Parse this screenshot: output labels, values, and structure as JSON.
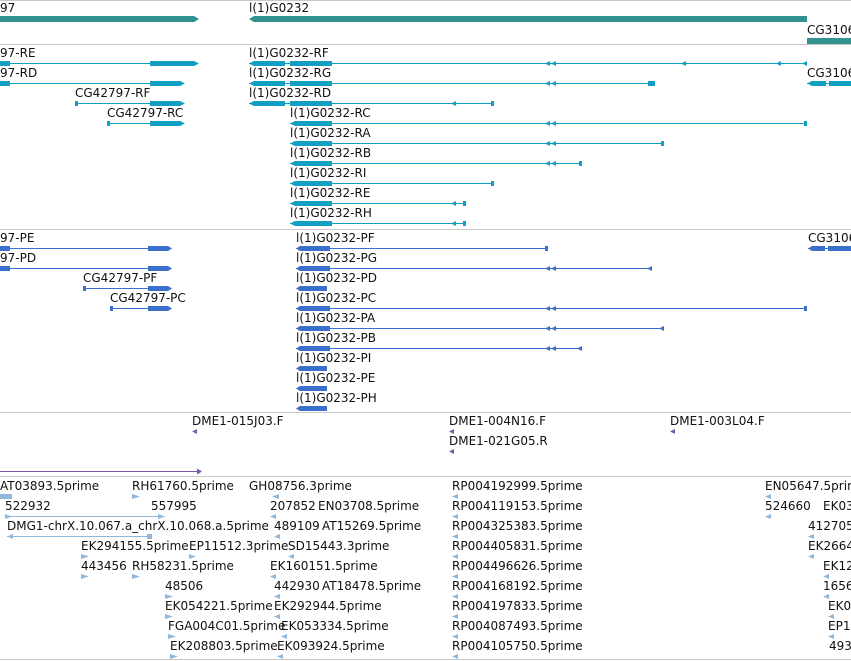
{
  "colors": {
    "gene": "#30938f",
    "rna": "#11a0c1",
    "protein": "#3a6fcc",
    "clone": "#7a5aa8",
    "est": "#8fb8dc",
    "divider": "#c8c8c8"
  },
  "genes": {
    "labels": [
      {
        "text": "97",
        "icon": ""
      },
      {
        "text": "l(1)G0232",
        "icon": ""
      },
      {
        "text": "CG3106",
        "icon": ""
      }
    ]
  },
  "transcripts": {
    "labels": [
      {
        "text": "97-RE"
      },
      {
        "text": "97-RD"
      },
      {
        "text": "CG42797-RF"
      },
      {
        "text": "CG42797-RC"
      },
      {
        "text": "l(1)G0232-RF"
      },
      {
        "text": "l(1)G0232-RG"
      },
      {
        "text": "l(1)G0232-RD"
      },
      {
        "text": "l(1)G0232-RC"
      },
      {
        "text": "l(1)G0232-RA"
      },
      {
        "text": "l(1)G0232-RB"
      },
      {
        "text": "l(1)G0232-RI"
      },
      {
        "text": "l(1)G0232-RE"
      },
      {
        "text": "l(1)G0232-RH"
      },
      {
        "text": "CG3106"
      }
    ]
  },
  "proteins": {
    "labels": [
      {
        "text": "97-PE"
      },
      {
        "text": "97-PD"
      },
      {
        "text": "CG42797-PF"
      },
      {
        "text": "CG42797-PC"
      },
      {
        "text": "l(1)G0232-PF"
      },
      {
        "text": "l(1)G0232-PG"
      },
      {
        "text": "l(1)G0232-PD"
      },
      {
        "text": "l(1)G0232-PC"
      },
      {
        "text": "l(1)G0232-PA"
      },
      {
        "text": "l(1)G0232-PB"
      },
      {
        "text": "l(1)G0232-PI"
      },
      {
        "text": "l(1)G0232-PE"
      },
      {
        "text": "l(1)G0232-PH"
      },
      {
        "text": "CG3106"
      }
    ]
  },
  "clones": {
    "labels": [
      {
        "text": "DME1-015J03.F"
      },
      {
        "text": "DME1-004N16.F"
      },
      {
        "text": "DME1-021G05.R"
      },
      {
        "text": "DME1-003L04.F"
      }
    ]
  },
  "ests": {
    "labels": [
      {
        "text": "AT03893.5prime"
      },
      {
        "text": "RH61760.5prime"
      },
      {
        "text": "GH08756.3prime"
      },
      {
        "text": "RP004192999.5prime"
      },
      {
        "text": "EN05647.5prime"
      },
      {
        "text": "522932"
      },
      {
        "text": "557995"
      },
      {
        "text": "207852"
      },
      {
        "text": "EN03708.5prime"
      },
      {
        "text": "RP004119153.5prime"
      },
      {
        "text": "524660"
      },
      {
        "text": "EK03"
      },
      {
        "text": "DMG1-chrX.10.067.a_chrX.10.068.a.5prime"
      },
      {
        "text": "489109"
      },
      {
        "text": "AT15269.5prime"
      },
      {
        "text": "RP004325383.5prime"
      },
      {
        "text": "412705"
      },
      {
        "text": "EK294155.5prime"
      },
      {
        "text": "EP11512.3prime"
      },
      {
        "text": "SD15443.3prime"
      },
      {
        "text": "RP004405831.5prime"
      },
      {
        "text": "EK2664"
      },
      {
        "text": "443456"
      },
      {
        "text": "RH58231.5prime"
      },
      {
        "text": "EK160151.5prime"
      },
      {
        "text": "RP004496626.5prime"
      },
      {
        "text": "EK12"
      },
      {
        "text": "48506"
      },
      {
        "text": "442930"
      },
      {
        "text": "AT18478.5prime"
      },
      {
        "text": "RP004168192.5prime"
      },
      {
        "text": "1656"
      },
      {
        "text": "EK054221.5prime"
      },
      {
        "text": "EK292944.5prime"
      },
      {
        "text": "RP004197833.5prime"
      },
      {
        "text": "EK0"
      },
      {
        "text": "FGA004C01.5prime"
      },
      {
        "text": "EK053334.5prime"
      },
      {
        "text": "RP004087493.5prime"
      },
      {
        "text": "EP1"
      },
      {
        "text": "EK208803.5prime"
      },
      {
        "text": "EK093924.5prime"
      },
      {
        "text": "RP004105750.5prime"
      },
      {
        "text": "493"
      }
    ]
  }
}
